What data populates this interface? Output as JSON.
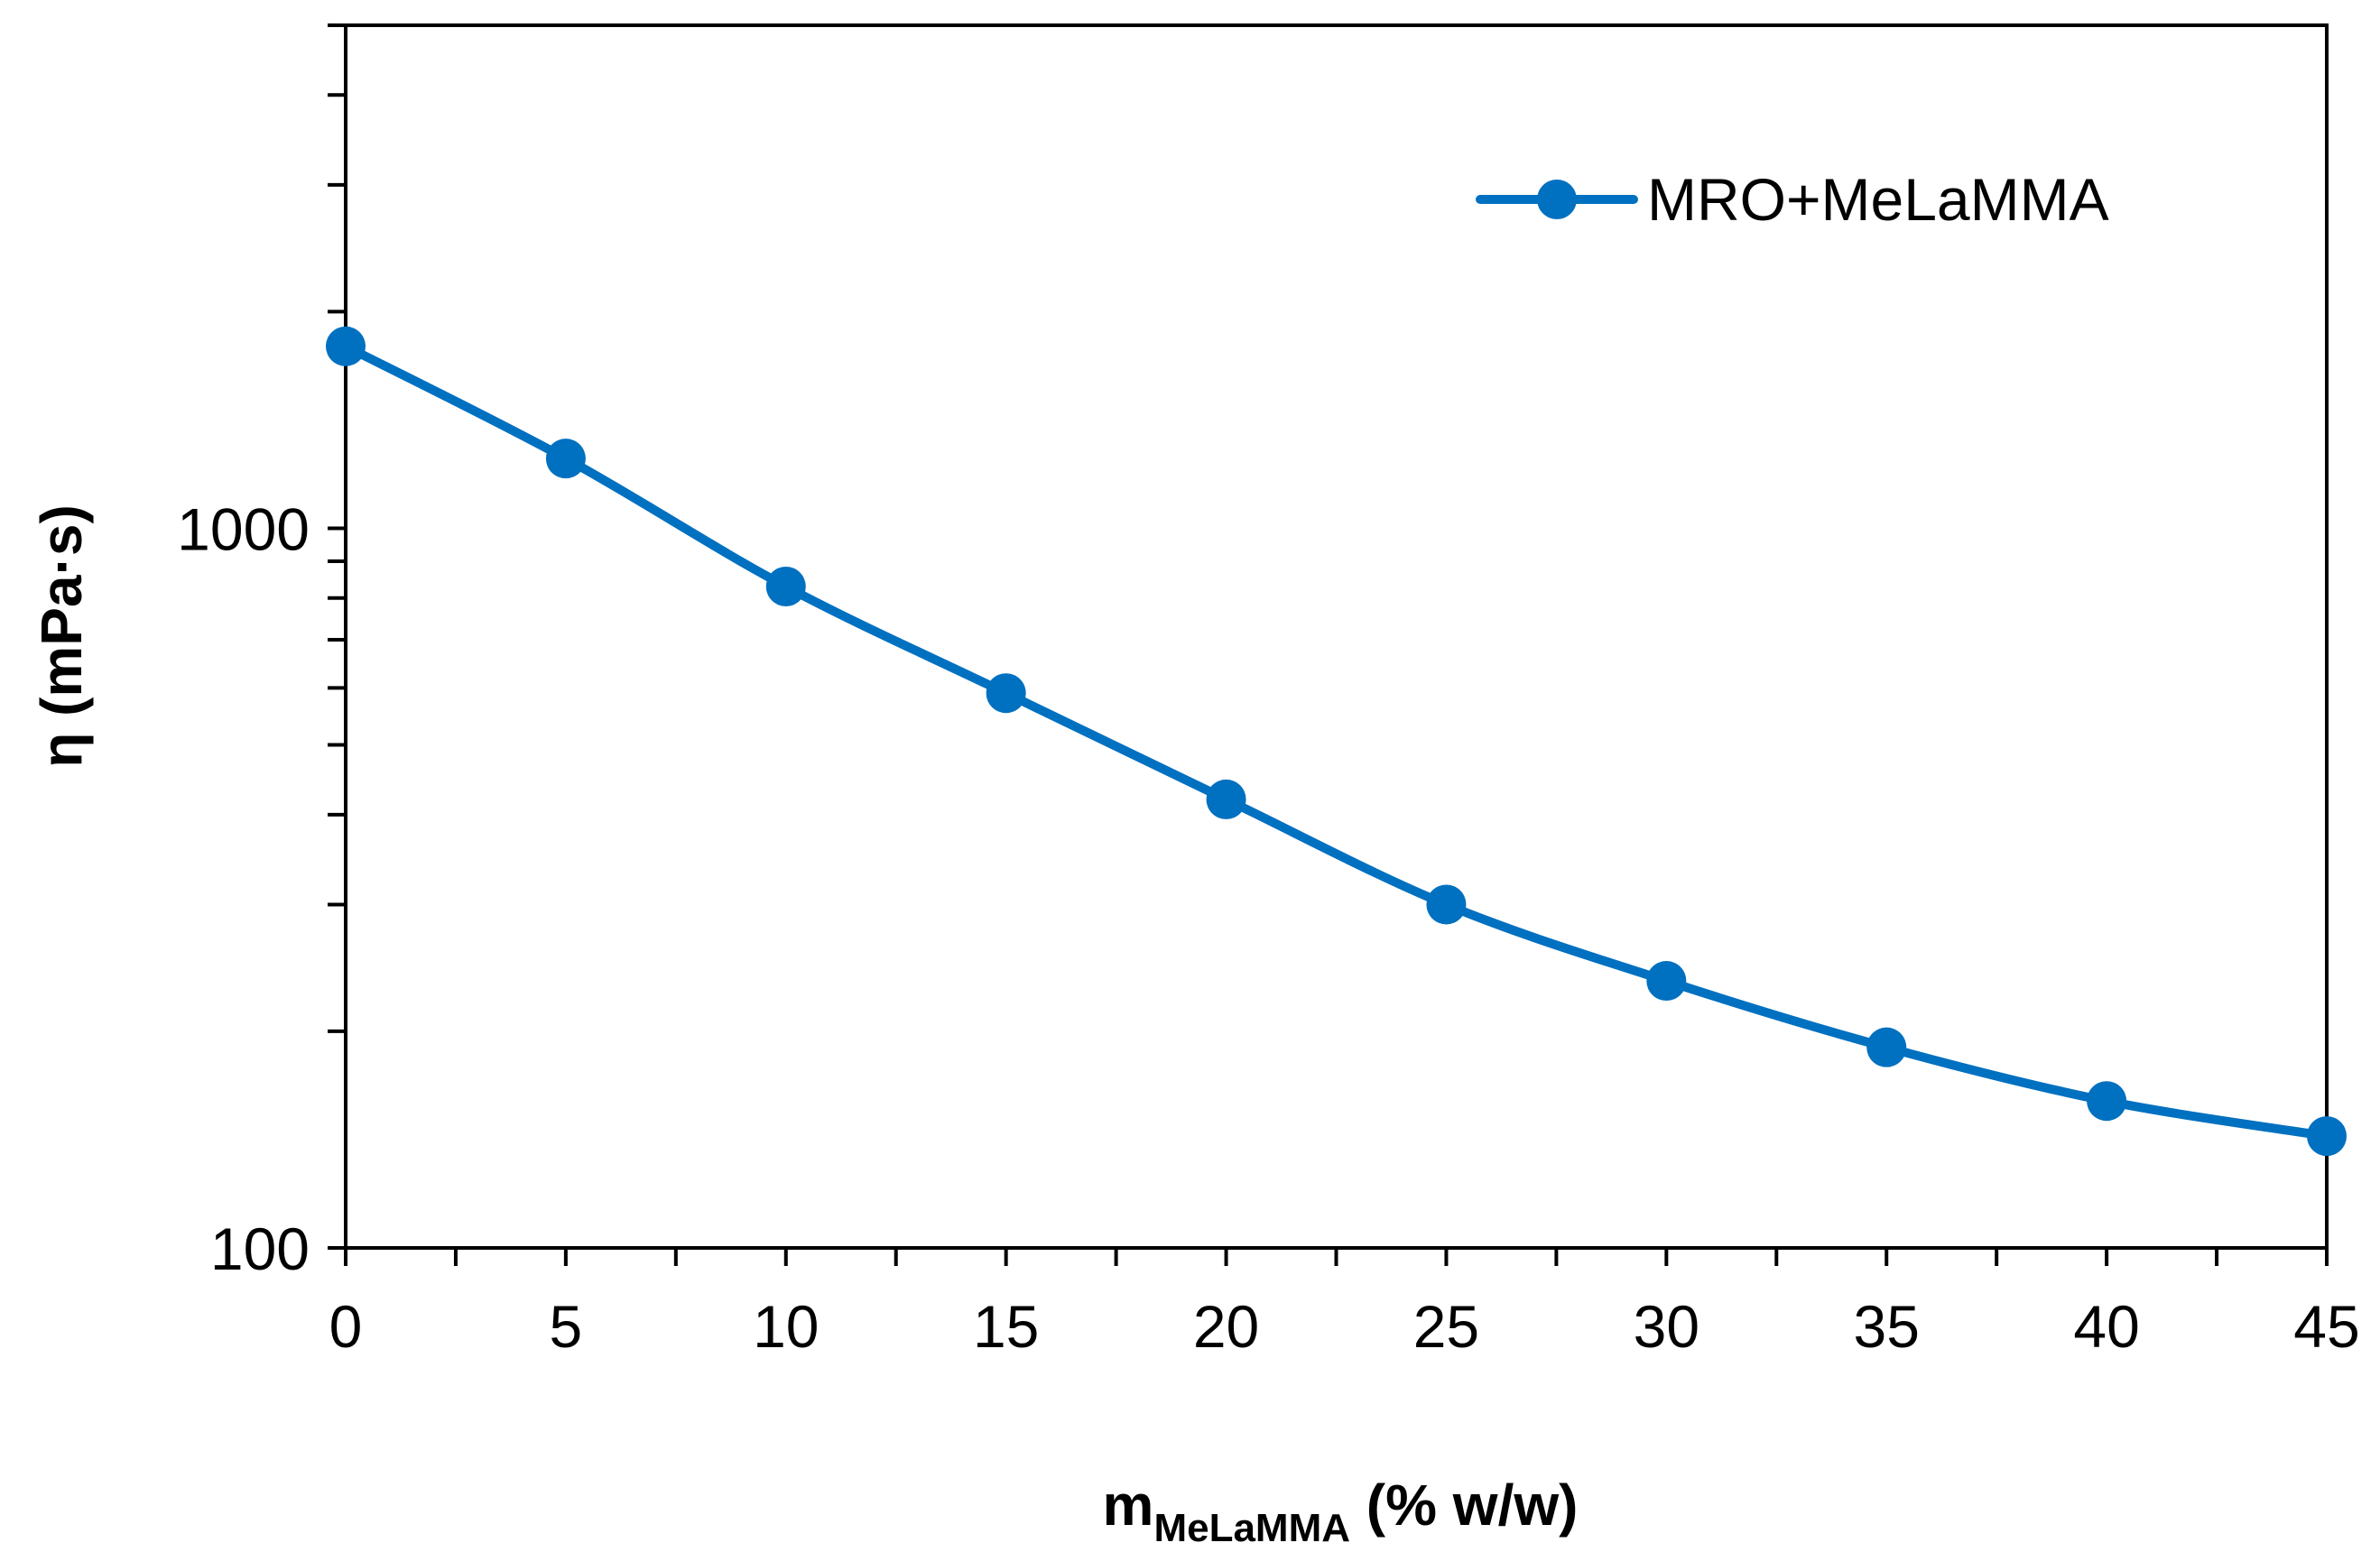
{
  "chart_data": {
    "type": "line",
    "title": "",
    "xlabel": {
      "main": "m",
      "subscript": "MeLaMMA",
      "suffix": " (% w/w)"
    },
    "ylabel": "η (mPa·s)",
    "xlim": [
      0,
      45
    ],
    "ylim": [
      100,
      5000
    ],
    "yscale": "log",
    "xticks": [
      0,
      5,
      10,
      15,
      20,
      25,
      30,
      35,
      40,
      45
    ],
    "xtick_labels": [
      "0",
      "5",
      "10",
      "15",
      "20",
      "25",
      "30",
      "35",
      "40",
      "45"
    ],
    "yticks": [
      100,
      1000
    ],
    "ytick_labels": [
      "100",
      "1000"
    ],
    "grid": false,
    "legend_position": "top-right",
    "series": [
      {
        "name": "MRO+MeLaMMA",
        "color": "#0070C0",
        "marker": "circle",
        "x": [
          0,
          5,
          10,
          15,
          20,
          25,
          30,
          35,
          40,
          45
        ],
        "y": [
          1790,
          1250,
          830,
          590,
          420,
          300,
          235,
          190,
          160,
          143
        ]
      }
    ]
  }
}
